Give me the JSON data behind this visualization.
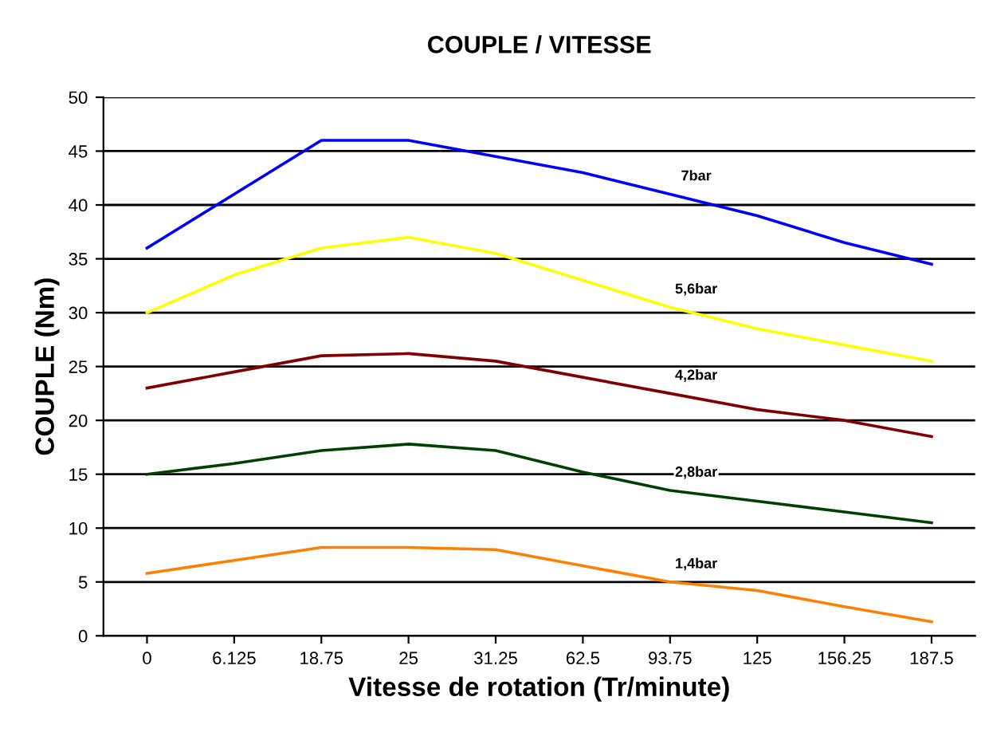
{
  "chart_data": {
    "type": "line",
    "title": "COUPLE / VITESSE",
    "xlabel": "Vitesse de rotation (Tr/minute)",
    "ylabel": "COUPLE (Nm)",
    "categories": [
      "0",
      "6.125",
      "18.75",
      "25",
      "31.25",
      "62.5",
      "93.75",
      "125",
      "156.25",
      "187.5"
    ],
    "series": [
      {
        "name": "7bar",
        "color": "#0000ff",
        "values": [
          36,
          41,
          46,
          46,
          44.5,
          43,
          41,
          39,
          36.5,
          34.5
        ]
      },
      {
        "name": "5,6bar",
        "color": "#ffff00",
        "values": [
          30,
          33.5,
          36,
          37,
          35.5,
          33,
          30.5,
          28.5,
          27,
          25.5
        ]
      },
      {
        "name": "4,2bar",
        "color": "#800000",
        "values": [
          23,
          24.5,
          26,
          26.2,
          25.5,
          24,
          22.5,
          21,
          20,
          18.5
        ]
      },
      {
        "name": "2,8bar",
        "color": "#004000",
        "values": [
          15,
          16,
          17.2,
          17.8,
          17.2,
          15.2,
          13.5,
          12.5,
          11.5,
          10.5
        ]
      },
      {
        "name": "1,4bar",
        "color": "#ff8000",
        "values": [
          5.8,
          7,
          8.2,
          8.2,
          8,
          6.5,
          5,
          4.2,
          2.7,
          1.3
        ]
      }
    ],
    "ylim": [
      0,
      50
    ],
    "yticks": [
      0,
      5,
      10,
      15,
      20,
      25,
      30,
      35,
      40,
      45,
      50
    ],
    "grid": "y",
    "marker": "none",
    "line_style": "solid"
  }
}
